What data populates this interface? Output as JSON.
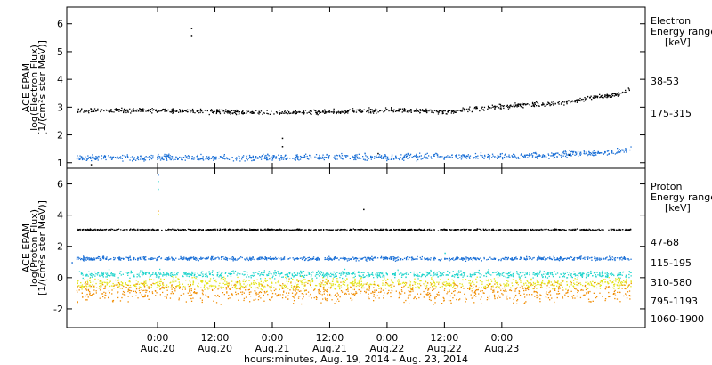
{
  "chart_data": [
    {
      "type": "scatter",
      "panel": "electron",
      "ylabel_lines": [
        "ACE EPAM",
        "log(Electron Flux)",
        "[1/(cm²s ster MeV)]"
      ],
      "ylim": [
        0.8,
        6.6
      ],
      "yticks": [
        1,
        2,
        3,
        4,
        5,
        6
      ],
      "legend_title": [
        "Electron",
        "Energy range",
        "[keV]"
      ],
      "series": [
        {
          "name": "38-53",
          "color": "#000000",
          "x_hours": [
            0,
            12,
            24,
            36,
            48,
            60,
            72,
            84,
            90,
            96,
            99
          ],
          "y": [
            2.9,
            2.85,
            2.82,
            2.85,
            2.92,
            2.85,
            3.05,
            3.15,
            3.35,
            3.45,
            3.7
          ]
        },
        {
          "name": "175-315",
          "color": "#1a6fd6",
          "x_hours": [
            0,
            24,
            48,
            72,
            96,
            99
          ],
          "y": [
            1.2,
            1.2,
            1.22,
            1.25,
            1.4,
            1.55
          ]
        }
      ]
    },
    {
      "type": "scatter",
      "panel": "proton",
      "ylabel_lines": [
        "ACE EPAM",
        "log(Proton Flux)",
        "[1/(cm²s ster MeV)]"
      ],
      "ylim": [
        -3.2,
        7.0
      ],
      "yticks": [
        -2,
        0,
        2,
        4,
        6
      ],
      "legend_title": [
        "Proton",
        "Energy range",
        "[keV]"
      ],
      "series": [
        {
          "name": "47-68",
          "color": "#000000",
          "x_hours": [
            0,
            99
          ],
          "y": [
            3.1,
            3.1
          ]
        },
        {
          "name": "115-195",
          "color": "#1a6fd6",
          "x_hours": [
            0,
            99
          ],
          "y": [
            1.25,
            1.25
          ]
        },
        {
          "name": "310-580",
          "color": "#21d4cc",
          "x_hours": [
            0,
            99
          ],
          "y": [
            0.25,
            0.25
          ]
        },
        {
          "name": "795-1193",
          "color": "#e3e31a",
          "x_hours": [
            0,
            99
          ],
          "y": [
            -0.35,
            -0.35
          ]
        },
        {
          "name": "1060-1900",
          "color": "#f08c00",
          "x_hours": [
            0,
            99
          ],
          "y": [
            -0.9,
            -0.9
          ]
        }
      ]
    }
  ],
  "x_axis": {
    "range_hours": [
      -19,
      102
    ],
    "ticks": [
      {
        "hours": 0,
        "time": "0:00",
        "date": "Aug.20"
      },
      {
        "hours": 12,
        "time": "12:00",
        "date": "Aug.20"
      },
      {
        "hours": 24,
        "time": "0:00",
        "date": "Aug.21"
      },
      {
        "hours": 36,
        "time": "12:00",
        "date": "Aug.21"
      },
      {
        "hours": 48,
        "time": "0:00",
        "date": "Aug.22"
      },
      {
        "hours": 60,
        "time": "12:00",
        "date": "Aug.22"
      },
      {
        "hours": 72,
        "time": "0:00",
        "date": "Aug.23"
      }
    ],
    "label": "hours:minutes, Aug. 19, 2014 - Aug. 23, 2014"
  }
}
